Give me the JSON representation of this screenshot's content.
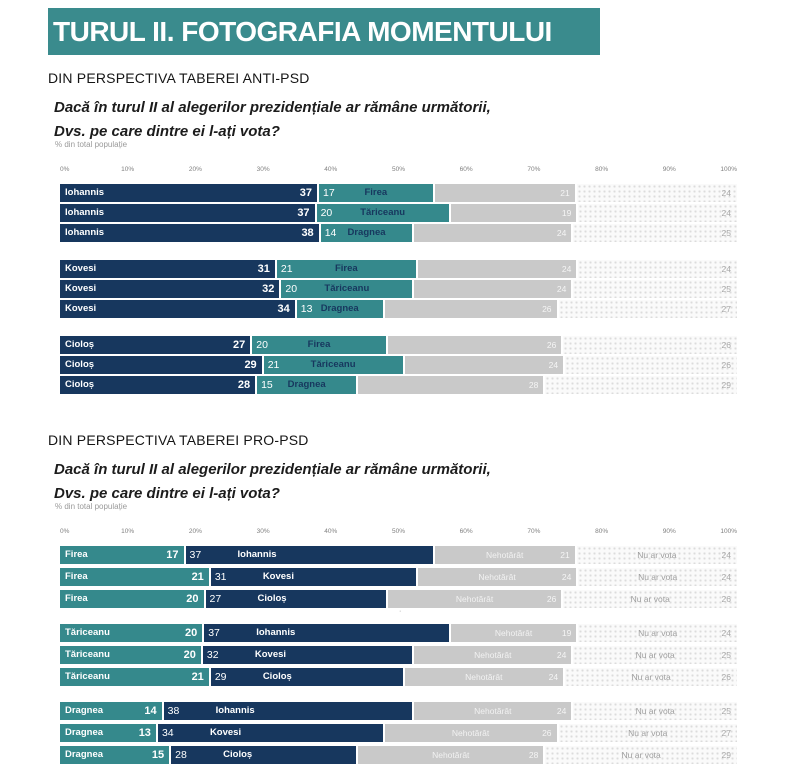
{
  "title": "TURUL II. FOTOGRAFIA MOMENTULUI",
  "footnote_marker": "·",
  "colors": {
    "title_bg": "#3A8B8D",
    "navy": "#17375E",
    "teal": "#35898C",
    "undecided_gray": "#C9C9C9",
    "no_vote_bg": "#FAFAFA"
  },
  "chart_data": [
    {
      "type": "bar",
      "layout": "horizontal-stacked",
      "variant": "anti-psd",
      "section": "DIN PERSPECTIVA TABEREI ANTI-PSD",
      "question_line1": "Dacă în turul II al alegerilor prezidențiale ar rămâne următorii,",
      "question_line2": "Dvs. pe care dintre ei l-ați vota?",
      "note": "% din total populație",
      "xlim": [
        0,
        100
      ],
      "axis_ticks": [
        "0%",
        "10%",
        "20%",
        "30%",
        "40%",
        "50%",
        "60%",
        "70%",
        "80%",
        "90%",
        "100%"
      ],
      "undecided_label": "",
      "no_vote_label": "",
      "groups": [
        {
          "rows": [
            {
              "first": "Iohannis",
              "first_value": 37,
              "second": "Firea",
              "second_value": 17,
              "undecided": 21,
              "no_vote": 24
            },
            {
              "first": "Iohannis",
              "first_value": 37,
              "second": "Tăriceanu",
              "second_value": 20,
              "undecided": 19,
              "no_vote": 24
            },
            {
              "first": "Iohannis",
              "first_value": 38,
              "second": "Dragnea",
              "second_value": 14,
              "undecided": 24,
              "no_vote": 25
            }
          ]
        },
        {
          "rows": [
            {
              "first": "Kovesi",
              "first_value": 31,
              "second": "Firea",
              "second_value": 21,
              "undecided": 24,
              "no_vote": 24
            },
            {
              "first": "Kovesi",
              "first_value": 32,
              "second": "Tăriceanu",
              "second_value": 20,
              "undecided": 24,
              "no_vote": 25
            },
            {
              "first": "Kovesi",
              "first_value": 34,
              "second": "Dragnea",
              "second_value": 13,
              "undecided": 26,
              "no_vote": 27
            }
          ]
        },
        {
          "rows": [
            {
              "first": "Cioloș",
              "first_value": 27,
              "second": "Firea",
              "second_value": 20,
              "undecided": 26,
              "no_vote": 26
            },
            {
              "first": "Cioloș",
              "first_value": 29,
              "second": "Tăriceanu",
              "second_value": 21,
              "undecided": 24,
              "no_vote": 26
            },
            {
              "first": "Cioloș",
              "first_value": 28,
              "second": "Dragnea",
              "second_value": 15,
              "undecided": 28,
              "no_vote": 29
            }
          ]
        }
      ]
    },
    {
      "type": "bar",
      "layout": "horizontal-stacked",
      "variant": "pro-psd",
      "section": "DIN PERSPECTIVA TABEREI PRO-PSD",
      "question_line1": "Dacă în turul II al alegerilor prezidențiale ar rămâne următorii,",
      "question_line2": "Dvs. pe care dintre ei l-ați vota?",
      "note": "% din total populație",
      "xlim": [
        0,
        100
      ],
      "axis_ticks": [
        "0%",
        "10%",
        "20%",
        "30%",
        "40%",
        "50%",
        "60%",
        "70%",
        "80%",
        "90%",
        "100%"
      ],
      "undecided_label": "Nehotărât",
      "no_vote_label": "Nu ar vota",
      "groups": [
        {
          "rows": [
            {
              "first": "Firea",
              "first_value": 17,
              "second": "Iohannis",
              "second_value": 37,
              "undecided": 21,
              "no_vote": 24
            },
            {
              "first": "Firea",
              "first_value": 21,
              "second": "Kovesi",
              "second_value": 31,
              "undecided": 24,
              "no_vote": 24
            },
            {
              "first": "Firea",
              "first_value": 20,
              "second": "Cioloș",
              "second_value": 27,
              "undecided": 26,
              "no_vote": 26
            }
          ]
        },
        {
          "rows": [
            {
              "first": "Tăriceanu",
              "first_value": 20,
              "second": "Iohannis",
              "second_value": 37,
              "undecided": 19,
              "no_vote": 24
            },
            {
              "first": "Tăriceanu",
              "first_value": 20,
              "second": "Kovesi",
              "second_value": 32,
              "undecided": 24,
              "no_vote": 25
            },
            {
              "first": "Tăriceanu",
              "first_value": 21,
              "second": "Cioloș",
              "second_value": 29,
              "undecided": 24,
              "no_vote": 26
            }
          ]
        },
        {
          "rows": [
            {
              "first": "Dragnea",
              "first_value": 14,
              "second": "Iohannis",
              "second_value": 38,
              "undecided": 24,
              "no_vote": 25
            },
            {
              "first": "Dragnea",
              "first_value": 13,
              "second": "Kovesi",
              "second_value": 34,
              "undecided": 26,
              "no_vote": 27
            },
            {
              "first": "Dragnea",
              "first_value": 15,
              "second": "Cioloș",
              "second_value": 28,
              "undecided": 28,
              "no_vote": 29
            }
          ]
        }
      ]
    }
  ]
}
